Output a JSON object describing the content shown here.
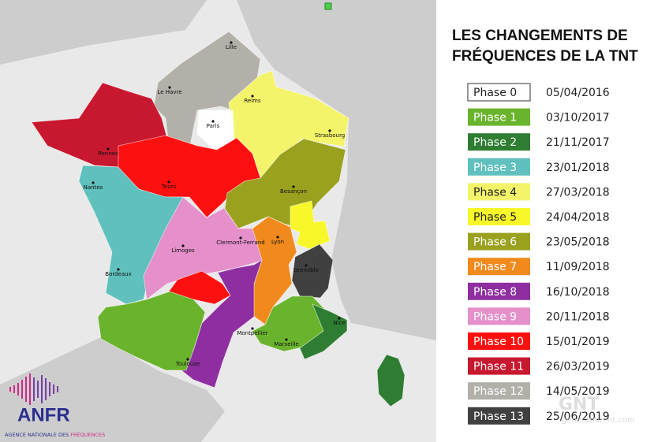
{
  "title_lines": [
    "LES CHANGEMENTS DE",
    "FRÉQUENCES DE LA TNT"
  ],
  "phases": [
    {
      "name": "Phase 0",
      "date": "05/04/2016",
      "color": "#ffffff"
    },
    {
      "name": "Phase 1",
      "date": "03/10/2017",
      "color": "#6ab42d"
    },
    {
      "name": "Phase 2",
      "date": "21/11/2017",
      "color": "#2e7d32"
    },
    {
      "name": "Phase 3",
      "date": "23/01/2018",
      "color": "#5fc0bd"
    },
    {
      "name": "Phase 4",
      "date": "27/03/2018",
      "color": "#f4f46a"
    },
    {
      "name": "Phase 5",
      "date": "24/04/2018",
      "color": "#f7f72a"
    },
    {
      "name": "Phase 6",
      "date": "23/05/2018",
      "color": "#9aa11f"
    },
    {
      "name": "Phase 7",
      "date": "11/09/2018",
      "color": "#f08a1c"
    },
    {
      "name": "Phase 8",
      "date": "16/10/2018",
      "color": "#8e2ea0"
    },
    {
      "name": "Phase 9",
      "date": "20/11/2018",
      "color": "#e58fcb"
    },
    {
      "name": "Phase 10",
      "date": "15/01/2019",
      "color": "#ff1010"
    },
    {
      "name": "Phase 11",
      "date": "26/03/2019",
      "color": "#c8182f"
    },
    {
      "name": "Phase 12",
      "date": "14/05/2019",
      "color": "#b3b0aa"
    },
    {
      "name": "Phase 13",
      "date": "25/06/2019",
      "color": "#404040"
    }
  ],
  "cities": [
    "Lille",
    "Le Havre",
    "Reims",
    "Paris",
    "Strasbourg",
    "Rennes",
    "Tours",
    "Nantes",
    "Besançon",
    "Clermont-Ferrand",
    "Lyon",
    "Limoges",
    "Bordeaux",
    "Grenoble",
    "Nice",
    "Toulouse",
    "Montpellier",
    "Marseille"
  ],
  "logo": {
    "name": "ANFR",
    "tagline_start": "AGENCE NATIONALE DES ",
    "tagline_end": "FRÉQUENCES"
  },
  "watermark": {
    "brand": "GNT",
    "site": "generation-nt.com"
  }
}
